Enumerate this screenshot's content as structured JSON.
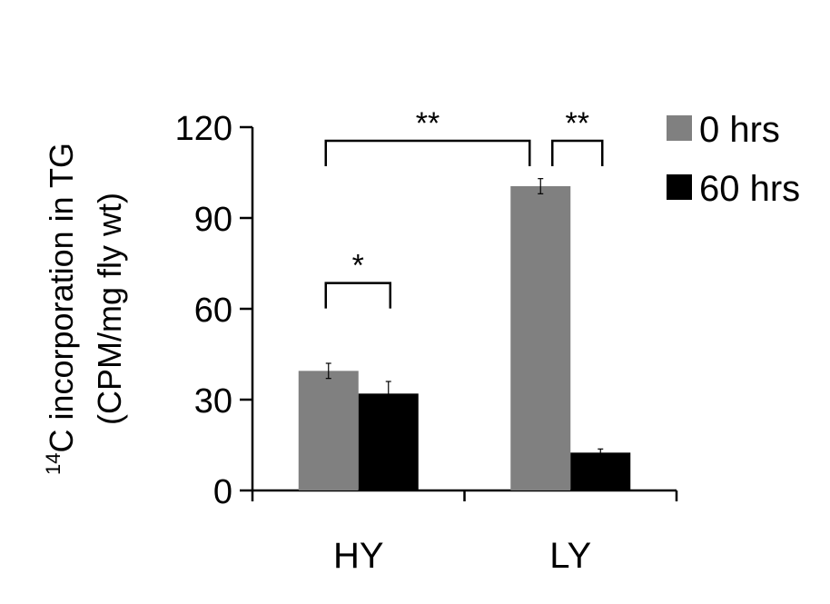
{
  "chart_data": {
    "type": "bar",
    "title": "",
    "ylabel_line1_sup": "14",
    "ylabel_line1": "C incorporation in TG",
    "ylabel_line2": "(CPM/mg fly wt)",
    "xlabel": "",
    "categories": [
      "HY",
      "LY"
    ],
    "ylim": [
      0,
      120
    ],
    "yticks": [
      0,
      30,
      60,
      90,
      120
    ],
    "series": [
      {
        "name": "0 hrs",
        "color": "#808080",
        "values": [
          39.5,
          100.5
        ],
        "errors": [
          2.5,
          2.5
        ]
      },
      {
        "name": "60 hrs",
        "color": "#000000",
        "values": [
          32,
          12.5
        ],
        "errors": [
          4,
          1.2
        ]
      }
    ],
    "legend_position": "top-right",
    "grid": false,
    "significance": [
      {
        "label": "*",
        "from": "HY.0 hrs",
        "to": "HY.60 hrs"
      },
      {
        "label": "**",
        "from": "HY.0 hrs",
        "to": "LY.0 hrs"
      },
      {
        "label": "**",
        "from": "LY.0 hrs",
        "to": "LY.60 hrs"
      }
    ]
  }
}
